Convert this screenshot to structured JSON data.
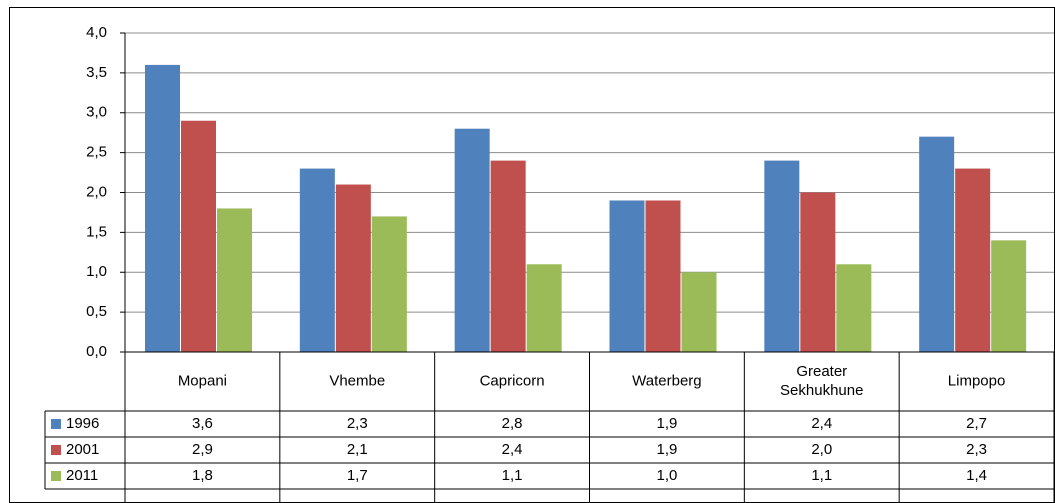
{
  "chart_data": {
    "type": "bar",
    "categories": [
      "Mopani",
      "Vhembe",
      "Capricorn",
      "Waterberg",
      "Greater Sekhukhune",
      "Limpopo"
    ],
    "series": [
      {
        "name": "1996",
        "color": "#4f81bd",
        "values": [
          3.6,
          2.3,
          2.8,
          1.9,
          2.4,
          2.7
        ],
        "value_labels": [
          "3,6",
          "2,3",
          "2,8",
          "1,9",
          "2,4",
          "2,7"
        ]
      },
      {
        "name": "2001",
        "color": "#c0504d",
        "values": [
          2.9,
          2.1,
          2.4,
          1.9,
          2.0,
          2.3
        ],
        "value_labels": [
          "2,9",
          "2,1",
          "2,4",
          "1,9",
          "2,0",
          "2,3"
        ]
      },
      {
        "name": "2011",
        "color": "#9bbb59",
        "values": [
          1.8,
          1.7,
          1.1,
          1.0,
          1.1,
          1.4
        ],
        "value_labels": [
          "1,8",
          "1,7",
          "1,1",
          "1,0",
          "1,1",
          "1,4"
        ]
      }
    ],
    "ylim": [
      0,
      4
    ],
    "yticks": [
      {
        "value": 0,
        "label": "0,0"
      },
      {
        "value": 0.5,
        "label": "0,5"
      },
      {
        "value": 1,
        "label": "1,0"
      },
      {
        "value": 1.5,
        "label": "1,5"
      },
      {
        "value": 2,
        "label": "2,0"
      },
      {
        "value": 2.5,
        "label": "2,5"
      },
      {
        "value": 3,
        "label": "3,0"
      },
      {
        "value": 3.5,
        "label": "3,5"
      },
      {
        "value": 4,
        "label": "4,0"
      }
    ],
    "grid": true
  }
}
